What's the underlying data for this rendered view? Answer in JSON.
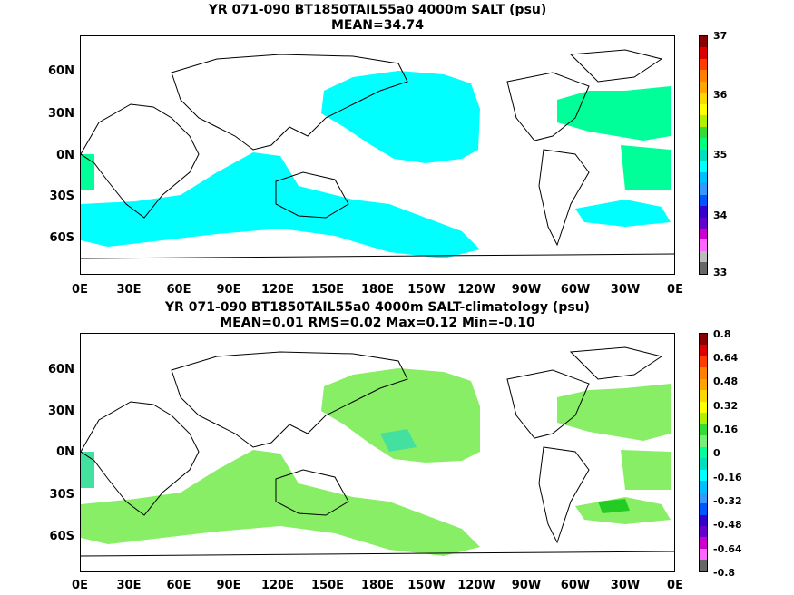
{
  "panel1": {
    "title_line1": "YR 071-090 BT1850TAIL55a0 4000m SALT (psu)",
    "title_line2": "MEAN=34.74",
    "y_labels": [
      "60N",
      "30N",
      "0N",
      "30S",
      "60S"
    ],
    "x_labels": [
      "0E",
      "30E",
      "60E",
      "90E",
      "120E",
      "150E",
      "180E",
      "150W",
      "120W",
      "90W",
      "60W",
      "30W",
      "0E"
    ],
    "colorbar_labels": [
      "37",
      "36",
      "35",
      "34",
      "33"
    ],
    "colorbar_colors": [
      "#8b0000",
      "#dd0000",
      "#ff3b00",
      "#ff7f00",
      "#ffa500",
      "#ffd700",
      "#ffff00",
      "#b0f000",
      "#33dd33",
      "#00ff7f",
      "#00e0c0",
      "#00ffff",
      "#00bfff",
      "#3399ff",
      "#0055ff",
      "#3300cc",
      "#6600cc",
      "#cc00cc",
      "#ff66ff",
      "#bbbbbb",
      "#666666"
    ],
    "field_color": "#00ffff",
    "atlantic_color": "#00ff99"
  },
  "panel2": {
    "title_line1": "YR 071-090 BT1850TAIL55a0 4000m SALT-climatology (psu)",
    "title_line2": "MEAN=0.01   RMS=0.02   Max=0.12   Min=-0.10",
    "y_labels": [
      "60N",
      "30N",
      "0N",
      "30S",
      "60S"
    ],
    "x_labels": [
      "0E",
      "30E",
      "60E",
      "90E",
      "120E",
      "150E",
      "180E",
      "150W",
      "120W",
      "90W",
      "60W",
      "30W",
      "0E"
    ],
    "colorbar_labels": [
      "0.8",
      "0.64",
      "0.48",
      "0.32",
      "0.16",
      "0",
      "-0.16",
      "-0.32",
      "-0.48",
      "-0.64",
      "-0.8"
    ],
    "colorbar_colors": [
      "#8b0000",
      "#dd0000",
      "#ff3b00",
      "#ff7f00",
      "#ffa500",
      "#ffd700",
      "#ffff00",
      "#b0f000",
      "#33dd33",
      "#77ee77",
      "#00ff99",
      "#00e0c0",
      "#00ffff",
      "#00bfff",
      "#3399ff",
      "#0055ff",
      "#3300cc",
      "#6600cc",
      "#cc00cc",
      "#ff66ff",
      "#666666"
    ],
    "field_color": "#88ee66",
    "accent_color": "#44e0a0"
  }
}
